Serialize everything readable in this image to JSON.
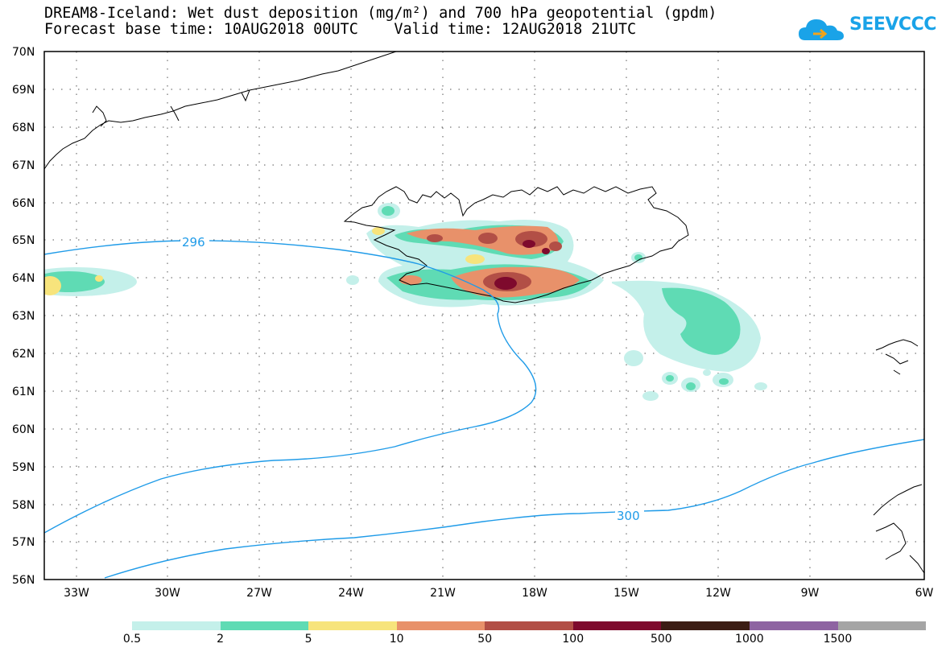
{
  "title": {
    "line1": "DREAM8-Iceland: Wet dust deposition (mg/m²) and 700 hPa geopotential (gpdm)",
    "line2": "Forecast base time: 10AUG2018 00UTC    Valid time: 12AUG2018 21UTC"
  },
  "logo": {
    "text": "SEEVCCC",
    "icon": "cloud-icon",
    "color": "#1aa3e8"
  },
  "map": {
    "lat_labels": [
      "70N",
      "69N",
      "68N",
      "67N",
      "66N",
      "65N",
      "64N",
      "63N",
      "62N",
      "61N",
      "60N",
      "59N",
      "58N",
      "57N",
      "56N"
    ],
    "lon_labels": [
      "33W",
      "30W",
      "27W",
      "24W",
      "21W",
      "18W",
      "15W",
      "12W",
      "9W",
      "6W"
    ],
    "contour_labels": [
      "296",
      "300"
    ],
    "contour_color": "#1f9be8",
    "coast_color": "#000000"
  },
  "legend": {
    "colors": [
      "#c4f0ea",
      "#5fdbb4",
      "#f7e47c",
      "#e8916a",
      "#b24f46",
      "#7e0a2d",
      "#3c1d14",
      "#8e64a2",
      "#a5a5a5"
    ],
    "labels": [
      "0.5",
      "2",
      "5",
      "10",
      "50",
      "100",
      "500",
      "1000",
      "1500"
    ]
  }
}
